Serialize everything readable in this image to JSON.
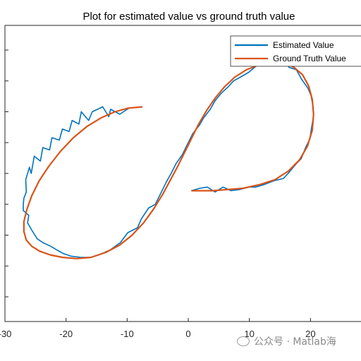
{
  "chart_data": {
    "type": "line",
    "title": "Plot for estimated value vs ground truth value",
    "xlabel": "",
    "ylabel": "",
    "xlim": [
      -30,
      30
    ],
    "ylim": [
      -12,
      12
    ],
    "xticks": [
      -30,
      -20,
      -10,
      0,
      10,
      20
    ],
    "xtick_labels": [
      "-30",
      "-20",
      "-10",
      "0",
      "10",
      "20"
    ],
    "yticks": [
      -10,
      -7.5,
      -5,
      -2.5,
      0,
      2.5,
      5,
      7.5,
      10
    ],
    "grid": false,
    "legend_position": "top-right",
    "series": [
      {
        "name": "Estimated Value",
        "color": "#0072BD",
        "x": [
          -7.5,
          -9.7,
          -11.2,
          -12.7,
          -13.0,
          -14.0,
          -15.7,
          -16.3,
          -17.5,
          -17.9,
          -19.0,
          -19.5,
          -20.6,
          -21.1,
          -22.3,
          -22.7,
          -23.8,
          -24.2,
          -25.2,
          -25.7,
          -26.0,
          -26.6,
          -26.5,
          -26.9,
          -27.0,
          -27.0,
          -26.1,
          -26.3,
          -25.6,
          -24.7,
          -23.8,
          -22.5,
          -21.5,
          -20.4,
          -19.2,
          -17.6,
          -16.0,
          -14.6,
          -12.8,
          -11.1,
          -9.9,
          -8.3,
          -7.7,
          -6.5,
          -5.4,
          -4.4,
          -3.6,
          -2.8,
          -2.0,
          -1.0,
          0.0,
          0.7,
          1.8,
          2.5,
          3.6,
          4.4,
          5.4,
          6.5,
          7.4,
          8.5,
          9.9,
          11.1,
          12.8,
          14.2,
          15.6,
          16.5,
          17.7,
          18.6,
          19.6,
          20.1,
          20.4,
          20.5,
          20.2,
          19.9,
          19.2,
          18.5,
          17.7,
          16.5,
          15.6,
          14.0,
          12.4,
          11.0,
          9.9,
          8.4,
          7.0,
          5.7,
          4.4,
          3.1,
          1.9,
          0.5
        ],
        "y": [
          5.4,
          5.3,
          4.8,
          5.2,
          4.6,
          5.4,
          5.0,
          4.3,
          5.0,
          4.0,
          4.3,
          3.4,
          3.6,
          2.7,
          2.9,
          1.9,
          2.1,
          1.0,
          1.4,
          0.0,
          0.5,
          -0.5,
          -1.5,
          -2.0,
          -2.5,
          -3.0,
          -3.4,
          -4.0,
          -4.6,
          -5.3,
          -5.6,
          -5.9,
          -6.2,
          -6.5,
          -6.7,
          -6.8,
          -6.8,
          -6.6,
          -6.2,
          -5.6,
          -4.8,
          -4.4,
          -3.7,
          -2.8,
          -2.5,
          -1.5,
          -0.7,
          0.0,
          0.8,
          1.5,
          2.5,
          3.2,
          3.9,
          4.5,
          5.2,
          5.9,
          6.5,
          7.0,
          7.5,
          7.8,
          8.2,
          8.7,
          9.1,
          8.9,
          9.2,
          8.6,
          8.4,
          7.6,
          6.9,
          6.3,
          5.5,
          4.6,
          3.8,
          2.8,
          2.1,
          1.2,
          0.8,
          0.1,
          -0.4,
          -0.6,
          -0.9,
          -1.1,
          -1.1,
          -1.3,
          -1.4,
          -1.1,
          -1.5,
          -1.1,
          -1.2,
          -1.4
        ]
      },
      {
        "name": "Ground Truth Value",
        "color": "#D95319",
        "x": [
          -7.5,
          -9.8,
          -12.0,
          -14.3,
          -16.6,
          -18.8,
          -20.9,
          -22.8,
          -24.4,
          -25.6,
          -26.4,
          -26.9,
          -26.9,
          -26.5,
          -25.6,
          -24.3,
          -22.6,
          -20.6,
          -18.3,
          -15.9,
          -13.5,
          -11.2,
          -9.2,
          -7.3,
          -5.7,
          -4.2,
          -3.0,
          -1.8,
          -0.7,
          0.5,
          1.7,
          3.0,
          4.4,
          5.9,
          7.6,
          9.5,
          11.6,
          13.7,
          15.6,
          17.3,
          18.7,
          19.7,
          20.3,
          20.5,
          20.3,
          19.5,
          18.2,
          16.4,
          14.2,
          11.7,
          9.0,
          6.4,
          4.0,
          1.9,
          0.5
        ],
        "y": [
          5.4,
          5.3,
          5.0,
          4.5,
          3.8,
          2.9,
          1.8,
          0.6,
          -0.6,
          -1.8,
          -2.9,
          -3.9,
          -4.7,
          -5.4,
          -5.9,
          -6.3,
          -6.6,
          -6.8,
          -6.9,
          -6.8,
          -6.4,
          -5.8,
          -5.0,
          -4.0,
          -2.9,
          -1.7,
          -0.6,
          0.5,
          1.6,
          2.8,
          4.0,
          5.1,
          6.1,
          7.0,
          7.8,
          8.4,
          8.8,
          9.0,
          9.0,
          8.6,
          8.0,
          7.1,
          6.0,
          4.8,
          3.5,
          2.2,
          1.1,
          0.2,
          -0.5,
          -0.9,
          -1.2,
          -1.3,
          -1.4,
          -1.4,
          -1.4
        ]
      }
    ]
  },
  "watermark": {
    "icon": "wechat-icon",
    "text": "公众号 · Matlab海"
  }
}
